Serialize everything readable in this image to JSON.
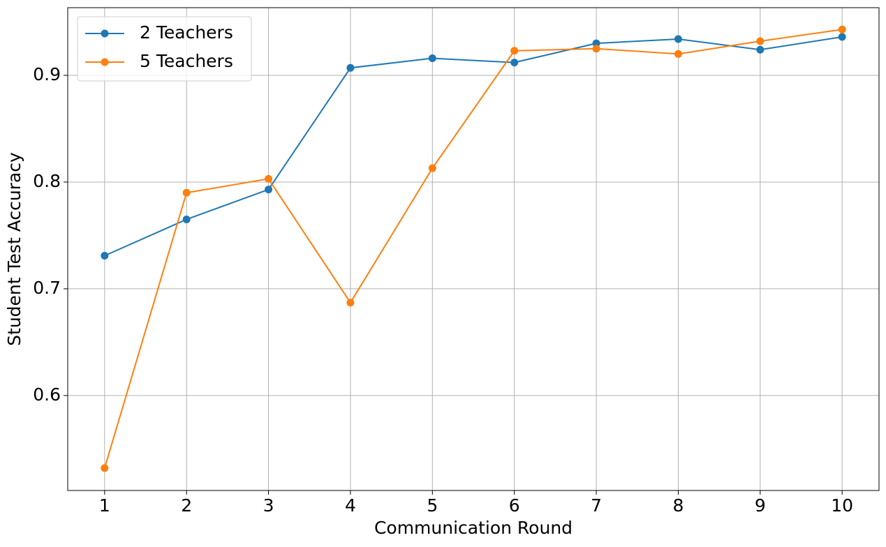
{
  "chart_data": {
    "type": "line",
    "x": [
      1,
      2,
      3,
      4,
      5,
      6,
      7,
      8,
      9,
      10
    ],
    "series": [
      {
        "name": "2 Teachers",
        "color": "#1f77b4",
        "values": [
          0.731,
          0.765,
          0.793,
          0.907,
          0.916,
          0.912,
          0.93,
          0.934,
          0.924,
          0.936
        ]
      },
      {
        "name": "5 Teachers",
        "color": "#ff7f0e",
        "values": [
          0.532,
          0.79,
          0.803,
          0.687,
          0.813,
          0.923,
          0.925,
          0.92,
          0.932,
          0.943
        ]
      }
    ],
    "xlabel": "Communication Round",
    "ylabel": "Student Test Accuracy",
    "xlim": [
      0.55,
      10.45
    ],
    "ylim": [
      0.511,
      0.9634
    ],
    "xticks": [
      1,
      2,
      3,
      4,
      5,
      6,
      7,
      8,
      9,
      10
    ],
    "yticks": [
      0.6,
      0.7,
      0.8,
      0.9
    ],
    "grid": true,
    "legend": "upper-left"
  }
}
